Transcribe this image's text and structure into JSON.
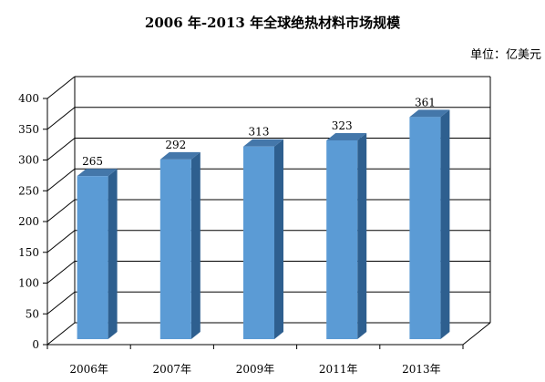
{
  "chart_data": {
    "type": "bar",
    "title": "2006 年-2013 年全球绝热材料市场规模",
    "unit_label": "单位：亿美元",
    "categories": [
      "2006年",
      "2007年",
      "2009年",
      "2011年",
      "2013年"
    ],
    "values": [
      265,
      292,
      313,
      323,
      361
    ],
    "value_labels": [
      "265",
      "292",
      "313",
      "323",
      "361"
    ],
    "ylim": [
      0,
      400
    ],
    "yticks": [
      0,
      50,
      100,
      150,
      200,
      250,
      300,
      350,
      400
    ],
    "ytick_labels": [
      "0",
      "50",
      "100",
      "150",
      "200",
      "250",
      "300",
      "350",
      "400"
    ],
    "grid": true,
    "three_d": true,
    "colors": {
      "bar_front": "#5b9bd5",
      "bar_side": "#2e5f8f",
      "bar_top": "#4477aa",
      "grid": "#000000",
      "wall": "#ffffff"
    }
  }
}
